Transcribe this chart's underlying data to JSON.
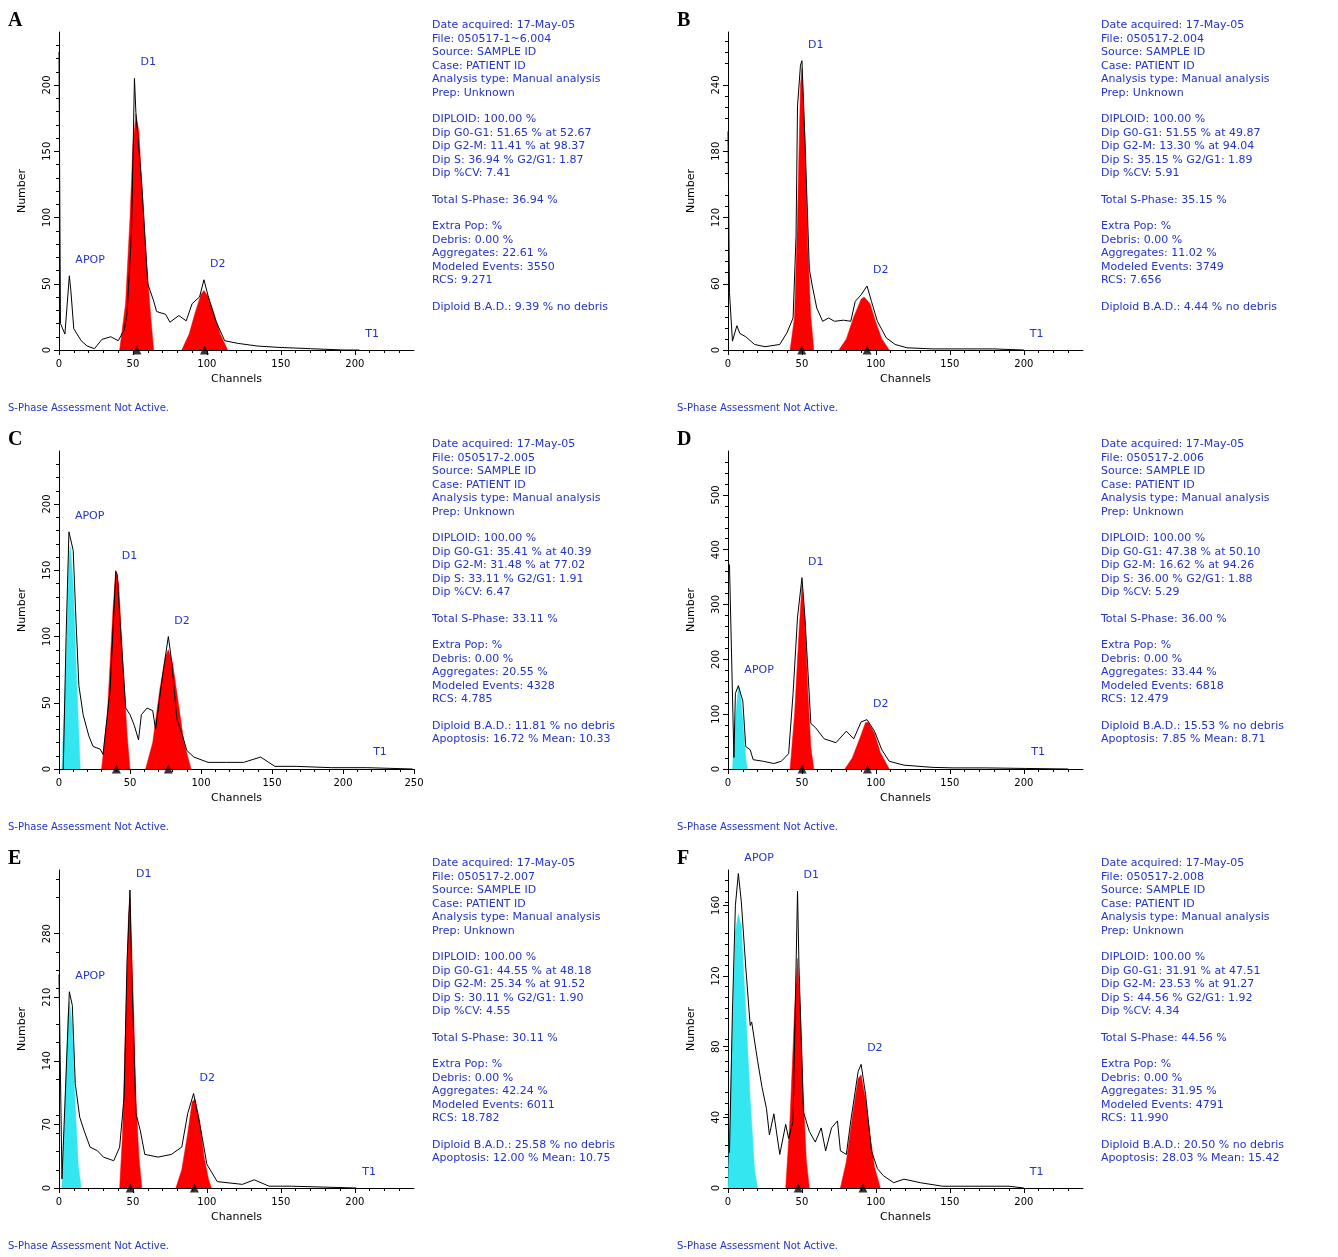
{
  "chart_data": [
    {
      "type": "line",
      "title": "A",
      "xlabel": "Channels",
      "ylabel": "Number",
      "xlim": [
        0,
        240
      ],
      "xticks": [
        0,
        50,
        100,
        150,
        200
      ],
      "ylim": [
        0,
        240
      ],
      "yticks": [
        0,
        50,
        100,
        150,
        200
      ],
      "grid": false,
      "marker": "none",
      "series": [
        {
          "type": "area",
          "color": "#ff0000",
          "x": [
            41,
            45,
            48,
            50,
            52,
            54,
            56,
            59,
            62,
            64
          ],
          "values": [
            0,
            35,
            100,
            155,
            178,
            165,
            125,
            70,
            25,
            0
          ]
        },
        {
          "type": "area",
          "color": "#ff0000",
          "x": [
            83,
            88,
            92,
            96,
            98,
            101,
            105,
            109,
            114
          ],
          "values": [
            0,
            12,
            28,
            42,
            45,
            40,
            27,
            12,
            0
          ]
        },
        {
          "color": "#000000",
          "x": [
            0,
            1,
            4,
            7,
            8,
            10,
            15,
            19,
            24,
            29,
            35,
            40,
            44,
            46,
            49,
            51,
            52,
            56,
            60,
            64,
            66,
            72,
            75,
            81,
            86,
            90,
            95,
            98,
            101,
            106,
            112,
            121,
            134,
            148,
            170,
            192,
            203
          ],
          "values": [
            225,
            20,
            12,
            56,
            45,
            16,
            7,
            3,
            1,
            8,
            10,
            7,
            15,
            27,
            88,
            205,
            179,
            124,
            50,
            37,
            29,
            27,
            21,
            26,
            22,
            35,
            40,
            53,
            40,
            22,
            7,
            5,
            3,
            2,
            1,
            0,
            0
          ]
        },
        {
          "type": "scatter",
          "marker": "triangle",
          "color": "#000000",
          "x": [
            52.67,
            98.37
          ],
          "values": [
            0,
            0
          ]
        }
      ],
      "annotations": [
        {
          "text": "APOP",
          "x": 7,
          "y": 56
        },
        {
          "text": "D1",
          "x": 51,
          "y": 205
        },
        {
          "text": "D2",
          "x": 98,
          "y": 53
        },
        {
          "text": "T1",
          "x": 203,
          "y": 0
        },
        "Date acquired: 17-May-05",
        "File: 050517-1~6.004",
        "Source: SAMPLE ID",
        "Case: PATIENT ID",
        "Analysis type: Manual analysis",
        "Prep: Unknown",
        "DIPLOID: 100.00 %",
        "Dip G0-G1: 51.65 % at 52.67",
        "Dip G2-M: 11.41 % at 98.37",
        "Dip S: 36.94 % G2/G1: 1.87",
        "Dip %CV: 7.41",
        "Total S-Phase: 36.94 %",
        "Extra Pop: %",
        "Debris: 0.00 %",
        "Aggregates: 22.61 %",
        "Modeled Events: 3550",
        "RCS: 9.271",
        "Diploid B.A.D.: 9.39 % no debris",
        "S-Phase Assessment Not Active."
      ]
    },
    {
      "type": "line",
      "title": "B",
      "xlabel": "Channels",
      "ylabel": "Number",
      "xlim": [
        0,
        240
      ],
      "xticks": [
        0,
        50,
        100,
        150,
        200
      ],
      "ylim": [
        0,
        288
      ],
      "yticks": [
        0,
        60,
        120,
        180,
        240
      ],
      "grid": false,
      "marker": "none",
      "series": [
        {
          "type": "area",
          "color": "#ff0000",
          "x": [
            42,
            45,
            47,
            49,
            50,
            52,
            54,
            56,
            58
          ],
          "values": [
            0,
            30,
            120,
            240,
            255,
            190,
            90,
            30,
            0
          ]
        },
        {
          "type": "area",
          "color": "#ff0000",
          "x": [
            75,
            80,
            85,
            90,
            92,
            96,
            100,
            104,
            109
          ],
          "values": [
            0,
            10,
            30,
            46,
            48,
            42,
            25,
            10,
            0
          ]
        },
        {
          "color": "#000000",
          "x": [
            0,
            1,
            3,
            6,
            8,
            12,
            18,
            25,
            35,
            40,
            44,
            46,
            47,
            49,
            50,
            52,
            55,
            57,
            60,
            64,
            68,
            72,
            78,
            83,
            86,
            90,
            94,
            97,
            101,
            107,
            113,
            121,
            138,
            159,
            179,
            200
          ],
          "values": [
            198,
            52,
            8,
            22,
            15,
            12,
            5,
            3,
            5,
            16,
            29,
            103,
            221,
            258,
            262,
            191,
            73,
            58,
            38,
            26,
            29,
            26,
            27,
            26,
            44,
            50,
            58,
            44,
            26,
            11,
            5,
            2,
            1,
            1,
            1,
            0
          ]
        },
        {
          "type": "scatter",
          "marker": "triangle",
          "color": "#000000",
          "x": [
            49.87,
            94.04
          ],
          "values": [
            0,
            0
          ]
        }
      ],
      "annotations": [
        {
          "text": "D1",
          "x": 50,
          "y": 262
        },
        {
          "text": "D2",
          "x": 94,
          "y": 58
        },
        {
          "text": "T1",
          "x": 200,
          "y": 0
        },
        "Date acquired: 17-May-05",
        "File: 050517-2.004",
        "Source: SAMPLE ID",
        "Case: PATIENT ID",
        "Analysis type: Manual analysis",
        "Prep: Unknown",
        "DIPLOID: 100.00 %",
        "Dip G0-G1: 51.55 % at 49.87",
        "Dip G2-M: 13.30 % at 94.04",
        "Dip S: 35.15 % G2/G1: 1.89",
        "Dip %CV: 5.91",
        "Total S-Phase: 35.15 %",
        "Extra Pop: %",
        "Debris: 0.00 %",
        "Aggregates: 11.02 %",
        "Modeled Events: 3749",
        "RCS: 7.656",
        "Diploid B.A.D.: 4.44 % no debris",
        "S-Phase Assessment Not Active."
      ]
    },
    {
      "type": "line",
      "title": "C",
      "xlabel": "Channels",
      "ylabel": "Number",
      "xlim": [
        0,
        250
      ],
      "xticks": [
        0,
        50,
        100,
        150,
        200,
        250
      ],
      "ylim": [
        0,
        240
      ],
      "yticks": [
        0,
        50,
        100,
        150,
        200
      ],
      "grid": false,
      "marker": "none",
      "series": [
        {
          "type": "area",
          "color": "#33e6f0",
          "x": [
            2,
            5,
            7,
            8,
            10,
            12,
            14,
            15
          ],
          "values": [
            0,
            80,
            160,
            168,
            140,
            80,
            25,
            0
          ]
        },
        {
          "type": "area",
          "color": "#ff0000",
          "x": [
            30,
            34,
            38,
            40,
            42,
            45,
            48,
            50
          ],
          "values": [
            0,
            40,
            120,
            150,
            140,
            80,
            25,
            0
          ]
        },
        {
          "type": "area",
          "color": "#ff0000",
          "x": [
            61,
            66,
            71,
            75,
            77,
            80,
            84,
            88,
            93
          ],
          "values": [
            0,
            20,
            60,
            85,
            90,
            80,
            50,
            20,
            0
          ]
        },
        {
          "color": "#000000",
          "x": [
            3,
            5,
            7,
            10,
            12,
            14,
            17,
            21,
            24,
            29,
            31,
            36,
            40,
            41,
            43,
            47,
            50,
            53,
            56,
            58,
            62,
            66,
            68,
            73,
            77,
            79,
            83,
            87,
            90,
            95,
            105,
            118,
            130,
            142,
            152,
            167,
            192,
            217,
            249
          ],
          "values": [
            0,
            100,
            179,
            165,
            111,
            63,
            41,
            25,
            17,
            15,
            11,
            60,
            149,
            147,
            111,
            46,
            41,
            33,
            22,
            41,
            46,
            44,
            30,
            71,
            100,
            84,
            38,
            25,
            14,
            9,
            5,
            5,
            5,
            9,
            2,
            2,
            1,
            1,
            0
          ]
        },
        {
          "type": "scatter",
          "marker": "triangle",
          "color": "#000000",
          "x": [
            40.39,
            77.02
          ],
          "values": [
            0,
            0
          ]
        }
      ],
      "annotations": [
        {
          "text": "APOP",
          "x": 7,
          "y": 179
        },
        {
          "text": "D1",
          "x": 40,
          "y": 149
        },
        {
          "text": "D2",
          "x": 77,
          "y": 100
        },
        {
          "text": "T1",
          "x": 217,
          "y": 1
        },
        "Date acquired: 17-May-05",
        "File: 050517-2.005",
        "Source: SAMPLE ID",
        "Case: PATIENT ID",
        "Analysis type: Manual analysis",
        "Prep: Unknown",
        "DIPLOID: 100.00 %",
        "Dip G0-G1: 35.41 % at 40.39",
        "Dip G2-M: 31.48 % at 77.02",
        "Dip S: 33.11 % G2/G1: 1.91",
        "Dip %CV: 6.47",
        "Total S-Phase: 33.11 %",
        "Extra Pop: %",
        "Debris: 0.00 %",
        "Aggregates: 20.55 %",
        "Modeled Events: 4328",
        "RCS: 4.785",
        "Diploid B.A.D.: 11.81 % no debris",
        "Apoptosis: 16.72 % Mean: 10.33",
        "S-Phase Assessment Not Active."
      ]
    },
    {
      "type": "line",
      "title": "D",
      "xlabel": "Channels",
      "ylabel": "Number",
      "xlim": [
        0,
        240
      ],
      "xticks": [
        0,
        50,
        100,
        150,
        200
      ],
      "ylim": [
        0,
        580
      ],
      "yticks": [
        0,
        100,
        200,
        300,
        400,
        500
      ],
      "grid": false,
      "marker": "none",
      "series": [
        {
          "type": "area",
          "color": "#33e6f0",
          "x": [
            3,
            5,
            7,
            8,
            10,
            12,
            13
          ],
          "values": [
            0,
            90,
            150,
            145,
            90,
            20,
            0
          ]
        },
        {
          "type": "area",
          "color": "#ff0000",
          "x": [
            42,
            45,
            48,
            50,
            52,
            54,
            56,
            58
          ],
          "values": [
            0,
            100,
            250,
            335,
            270,
            140,
            40,
            0
          ]
        },
        {
          "type": "area",
          "color": "#ff0000",
          "x": [
            79,
            84,
            89,
            93,
            95,
            99,
            103,
            109
          ],
          "values": [
            0,
            20,
            55,
            85,
            85,
            65,
            30,
            0
          ]
        },
        {
          "color": "#000000",
          "x": [
            1,
            4,
            5,
            7,
            10,
            12,
            15,
            17,
            24,
            31,
            36,
            41,
            44,
            47,
            50,
            52,
            56,
            59,
            65,
            73,
            80,
            85,
            90,
            94,
            99,
            104,
            109,
            119,
            138,
            152,
            174,
            201,
            230
          ],
          "values": [
            373,
            21,
            138,
            152,
            124,
            41,
            35,
            17,
            14,
            10,
            14,
            28,
            138,
            277,
            349,
            277,
            83,
            76,
            55,
            48,
            69,
            55,
            86,
            90,
            69,
            35,
            14,
            7,
            3,
            2,
            2,
            1,
            0
          ]
        },
        {
          "type": "scatter",
          "marker": "triangle",
          "color": "#000000",
          "x": [
            50.1,
            94.26
          ],
          "values": [
            0,
            0
          ]
        }
      ],
      "annotations": [
        {
          "text": "APOP",
          "x": 7,
          "y": 152
        },
        {
          "text": "D1",
          "x": 50,
          "y": 349
        },
        {
          "text": "D2",
          "x": 94,
          "y": 90
        },
        {
          "text": "T1",
          "x": 201,
          "y": 1
        },
        "Date acquired: 17-May-05",
        "File: 050517-2.006",
        "Source: SAMPLE ID",
        "Case: PATIENT ID",
        "Analysis type: Manual analysis",
        "Prep: Unknown",
        "DIPLOID: 100.00 %",
        "Dip G0-G1: 47.38 % at 50.10",
        "Dip G2-M: 16.62 % at 94.26",
        "Dip S: 36.00 % G2/G1: 1.88",
        "Dip %CV: 5.29",
        "Total S-Phase: 36.00 %",
        "Extra Pop: %",
        "Debris: 0.00 %",
        "Aggregates: 33.44 %",
        "Modeled Events: 6818",
        "RCS: 12.479",
        "Diploid B.A.D.: 15.53 % no debris",
        "Apoptosis: 7.85 % Mean: 8.71",
        "S-Phase Assessment Not Active."
      ]
    },
    {
      "type": "line",
      "title": "E",
      "xlabel": "Channels",
      "ylabel": "Number",
      "xlim": [
        0,
        240
      ],
      "xticks": [
        0,
        50,
        100,
        150,
        200
      ],
      "ylim": [
        0,
        350
      ],
      "yticks": [
        0,
        70,
        140,
        210,
        280
      ],
      "grid": false,
      "marker": "none",
      "series": [
        {
          "type": "area",
          "color": "#33e6f0",
          "x": [
            2,
            4,
            6,
            7,
            9,
            11,
            13,
            15
          ],
          "values": [
            0,
            90,
            190,
            205,
            180,
            90,
            25,
            0
          ]
        },
        {
          "type": "area",
          "color": "#ff0000",
          "x": [
            41,
            43,
            45,
            47,
            48,
            50,
            52,
            54,
            56
          ],
          "values": [
            0,
            60,
            180,
            300,
            320,
            220,
            100,
            35,
            0
          ]
        },
        {
          "type": "area",
          "color": "#ff0000",
          "x": [
            79,
            83,
            87,
            90,
            92,
            95,
            98,
            101,
            103
          ],
          "values": [
            0,
            20,
            60,
            95,
            98,
            75,
            35,
            10,
            0
          ]
        },
        {
          "color": "#000000",
          "x": [
            0,
            2,
            7,
            9,
            11,
            14,
            17,
            21,
            26,
            30,
            37,
            41,
            44,
            46,
            48,
            49,
            52,
            55,
            58,
            67,
            76,
            83,
            87,
            91,
            96,
            100,
            107,
            124,
            132,
            142,
            157,
            179,
            201
          ],
          "values": [
            235,
            10,
            216,
            201,
            115,
            78,
            63,
            45,
            41,
            34,
            30,
            45,
            100,
            249,
            328,
            249,
            82,
            63,
            37,
            34,
            37,
            45,
            82,
            104,
            63,
            26,
            7,
            4,
            9,
            2,
            2,
            1,
            0
          ]
        },
        {
          "type": "scatter",
          "marker": "triangle",
          "color": "#000000",
          "x": [
            48.18,
            91.52
          ],
          "values": [
            0,
            0
          ]
        }
      ],
      "annotations": [
        {
          "text": "APOP",
          "x": 7,
          "y": 216
        },
        {
          "text": "D1",
          "x": 48,
          "y": 328
        },
        {
          "text": "D2",
          "x": 91,
          "y": 104
        },
        {
          "text": "T1",
          "x": 201,
          "y": 0
        },
        "Date acquired: 17-May-05",
        "File: 050517-2.007",
        "Source: SAMPLE ID",
        "Case: PATIENT ID",
        "Analysis type: Manual analysis",
        "Prep: Unknown",
        "DIPLOID: 100.00 %",
        "Dip G0-G1: 44.55 % at 48.18",
        "Dip G2-M: 25.34 % at 91.52",
        "Dip S: 30.11 % G2/G1: 1.90",
        "Dip %CV: 4.55",
        "Total S-Phase: 30.11 %",
        "Extra Pop: %",
        "Debris: 0.00 %",
        "Aggregates: 42.24 %",
        "Modeled Events: 6011",
        "RCS: 18.782",
        "Diploid B.A.D.: 25.58 % no debris",
        "Apoptosis: 12.00 % Mean: 10.75",
        "S-Phase Assessment Not Active."
      ]
    },
    {
      "type": "line",
      "title": "F",
      "xlabel": "Channels",
      "ylabel": "Number",
      "xlim": [
        0,
        240
      ],
      "xticks": [
        0,
        50,
        100,
        150,
        200
      ],
      "ylim": [
        0,
        180
      ],
      "yticks": [
        0,
        40,
        80,
        120,
        160
      ],
      "grid": false,
      "marker": "none",
      "series": [
        {
          "type": "area",
          "color": "#33e6f0",
          "x": [
            0,
            3,
            5,
            7,
            9,
            12,
            15,
            18,
            20
          ],
          "values": [
            0,
            90,
            145,
            155,
            148,
            100,
            50,
            10,
            0
          ]
        },
        {
          "type": "area",
          "color": "#ff0000",
          "x": [
            39,
            42,
            45,
            47,
            49,
            51,
            53,
            55
          ],
          "values": [
            0,
            40,
            100,
            130,
            100,
            50,
            15,
            0
          ]
        },
        {
          "type": "area",
          "color": "#ff0000",
          "x": [
            76,
            80,
            84,
            88,
            90,
            93,
            96,
            99,
            103
          ],
          "values": [
            0,
            15,
            40,
            62,
            64,
            50,
            30,
            12,
            0
          ]
        },
        {
          "color": "#000000",
          "x": [
            1,
            3,
            5,
            7,
            9,
            12,
            15,
            16,
            20,
            23,
            26,
            28,
            31,
            35,
            39,
            41,
            44,
            46,
            47,
            48,
            51,
            55,
            59,
            63,
            66,
            70,
            74,
            76,
            80,
            83,
            88,
            90,
            93,
            97,
            101,
            105,
            112,
            119,
            130,
            145,
            165,
            190,
            200
          ],
          "values": [
            20,
            100,
            160,
            178,
            162,
            125,
            92,
            94,
            72,
            57,
            45,
            30,
            42,
            19,
            36,
            28,
            38,
            125,
            168,
            125,
            43,
            32,
            26,
            34,
            21,
            34,
            38,
            21,
            19,
            38,
            66,
            70,
            53,
            21,
            11,
            7,
            3,
            5,
            3,
            1,
            1,
            1,
            0
          ]
        },
        {
          "type": "scatter",
          "marker": "triangle",
          "color": "#000000",
          "x": [
            47.51,
            91.27
          ],
          "values": [
            0,
            0
          ]
        }
      ],
      "annotations": [
        {
          "text": "APOP",
          "x": 7,
          "y": 178
        },
        {
          "text": "D1",
          "x": 47,
          "y": 168
        },
        {
          "text": "D2",
          "x": 90,
          "y": 70
        },
        {
          "text": "T1",
          "x": 200,
          "y": 0
        },
        "Date acquired: 17-May-05",
        "File: 050517-2.008",
        "Source: SAMPLE ID",
        "Case: PATIENT ID",
        "Analysis type: Manual analysis",
        "Prep: Unknown",
        "DIPLOID: 100.00 %",
        "Dip G0-G1: 31.91 % at 47.51",
        "Dip G2-M: 23.53 % at 91.27",
        "Dip S: 44.56 % G2/G1: 1.92",
        "Dip %CV: 4.34",
        "Total S-Phase: 44.56 %",
        "Extra Pop: %",
        "Debris: 0.00 %",
        "Aggregates: 31.95 %",
        "Modeled Events: 4791",
        "RCS: 11.990",
        "Diploid B.A.D.: 20.50 % no debris",
        "Apoptosis: 28.03 % Mean: 15.42",
        "S-Phase Assessment Not Active."
      ]
    }
  ]
}
